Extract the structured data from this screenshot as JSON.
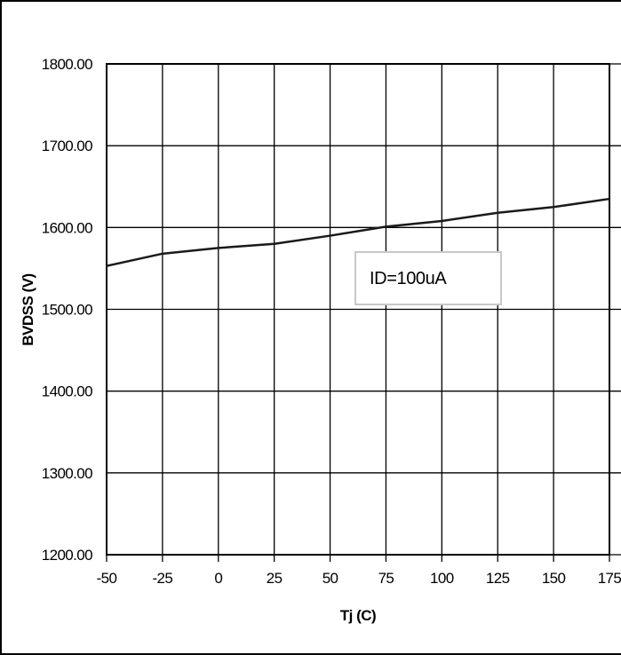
{
  "chart_data": {
    "type": "line",
    "title": "",
    "xlabel": "Tj (C)",
    "ylabel": "BVDSS (V)",
    "x": [
      -50,
      -25,
      0,
      25,
      50,
      75,
      100,
      125,
      150,
      175
    ],
    "xticks": [
      "-50",
      "-25",
      "0",
      "25",
      "50",
      "75",
      "100",
      "125",
      "150",
      "175"
    ],
    "xlim": [
      -50,
      175
    ],
    "yticks": [
      "1200.00",
      "1300.00",
      "1400.00",
      "1500.00",
      "1600.00",
      "1700.00",
      "1800.00"
    ],
    "ylim": [
      1200,
      1800
    ],
    "grid": true,
    "series": [
      {
        "values": [
          1553,
          1568,
          1575,
          1580,
          1590,
          1601,
          1608,
          1618,
          1625,
          1635
        ]
      }
    ],
    "annotation": "ID=100uA",
    "colors": {
      "line": "#1a1a1a",
      "grid": "#000000",
      "annotation_border": "#c8c8c8"
    }
  }
}
